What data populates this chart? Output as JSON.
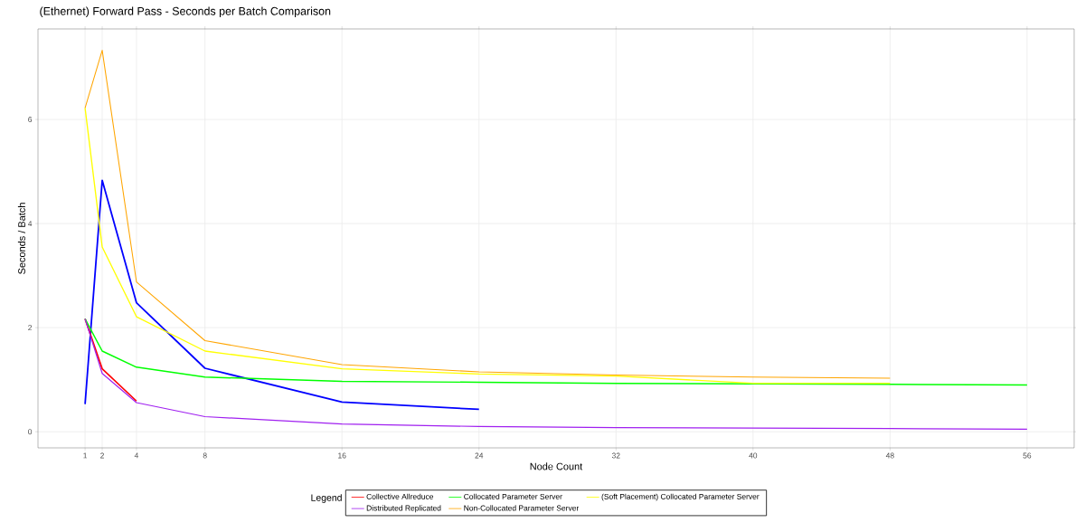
{
  "chart_data": {
    "type": "line",
    "title": "(Ethernet) Forward Pass  -  Seconds per Batch Comparison",
    "xlabel": "Node Count",
    "ylabel": "Seconds / Batch",
    "legend_title": "Legend",
    "xlim": [
      -1.75,
      58.75
    ],
    "ylim": [
      -0.31,
      7.74
    ],
    "xticks": [
      1,
      2,
      4,
      8,
      16,
      24,
      32,
      40,
      48,
      56
    ],
    "yticks": [
      0,
      2,
      4,
      6
    ],
    "grid": true,
    "legend": "bottom",
    "series": [
      {
        "color": "#0000ff",
        "x": [
          1,
          2,
          4,
          8,
          16,
          24
        ],
        "values": [
          0.53,
          4.83,
          2.48,
          1.22,
          0.57,
          0.43
        ]
      },
      {
        "name": "Collective Allreduce",
        "color": "#ff0000",
        "x": [
          1,
          2,
          4
        ],
        "values": [
          2.17,
          1.21,
          0.59
        ]
      },
      {
        "name": "Collocated Parameter Server",
        "color": "#00ff00",
        "x": [
          1,
          2,
          4,
          8,
          16,
          24,
          32,
          40,
          48,
          56
        ],
        "values": [
          2.17,
          1.55,
          1.24,
          1.05,
          0.97,
          0.95,
          0.93,
          0.92,
          0.91,
          0.9
        ]
      },
      {
        "name": "(Soft Placement) Collocated Parameter Server",
        "color": "#ffff00",
        "x": [
          1,
          2,
          4,
          8,
          16,
          24,
          32,
          40,
          48
        ],
        "values": [
          6.22,
          3.55,
          2.21,
          1.55,
          1.21,
          1.11,
          1.07,
          0.93,
          0.93
        ]
      },
      {
        "name": "Distributed Replicated",
        "color": "#a020f0",
        "x": [
          1,
          2,
          4,
          8,
          16,
          24,
          32,
          40,
          48,
          56
        ],
        "values": [
          2.17,
          1.12,
          0.56,
          0.29,
          0.15,
          0.1,
          0.08,
          0.07,
          0.06,
          0.05
        ]
      },
      {
        "name": "Non-Collocated Parameter Server",
        "color": "#ffa500",
        "x": [
          1,
          2,
          4,
          8,
          16,
          24,
          32,
          40,
          48
        ],
        "values": [
          6.22,
          7.33,
          2.88,
          1.75,
          1.29,
          1.15,
          1.09,
          1.05,
          1.03
        ]
      }
    ]
  }
}
